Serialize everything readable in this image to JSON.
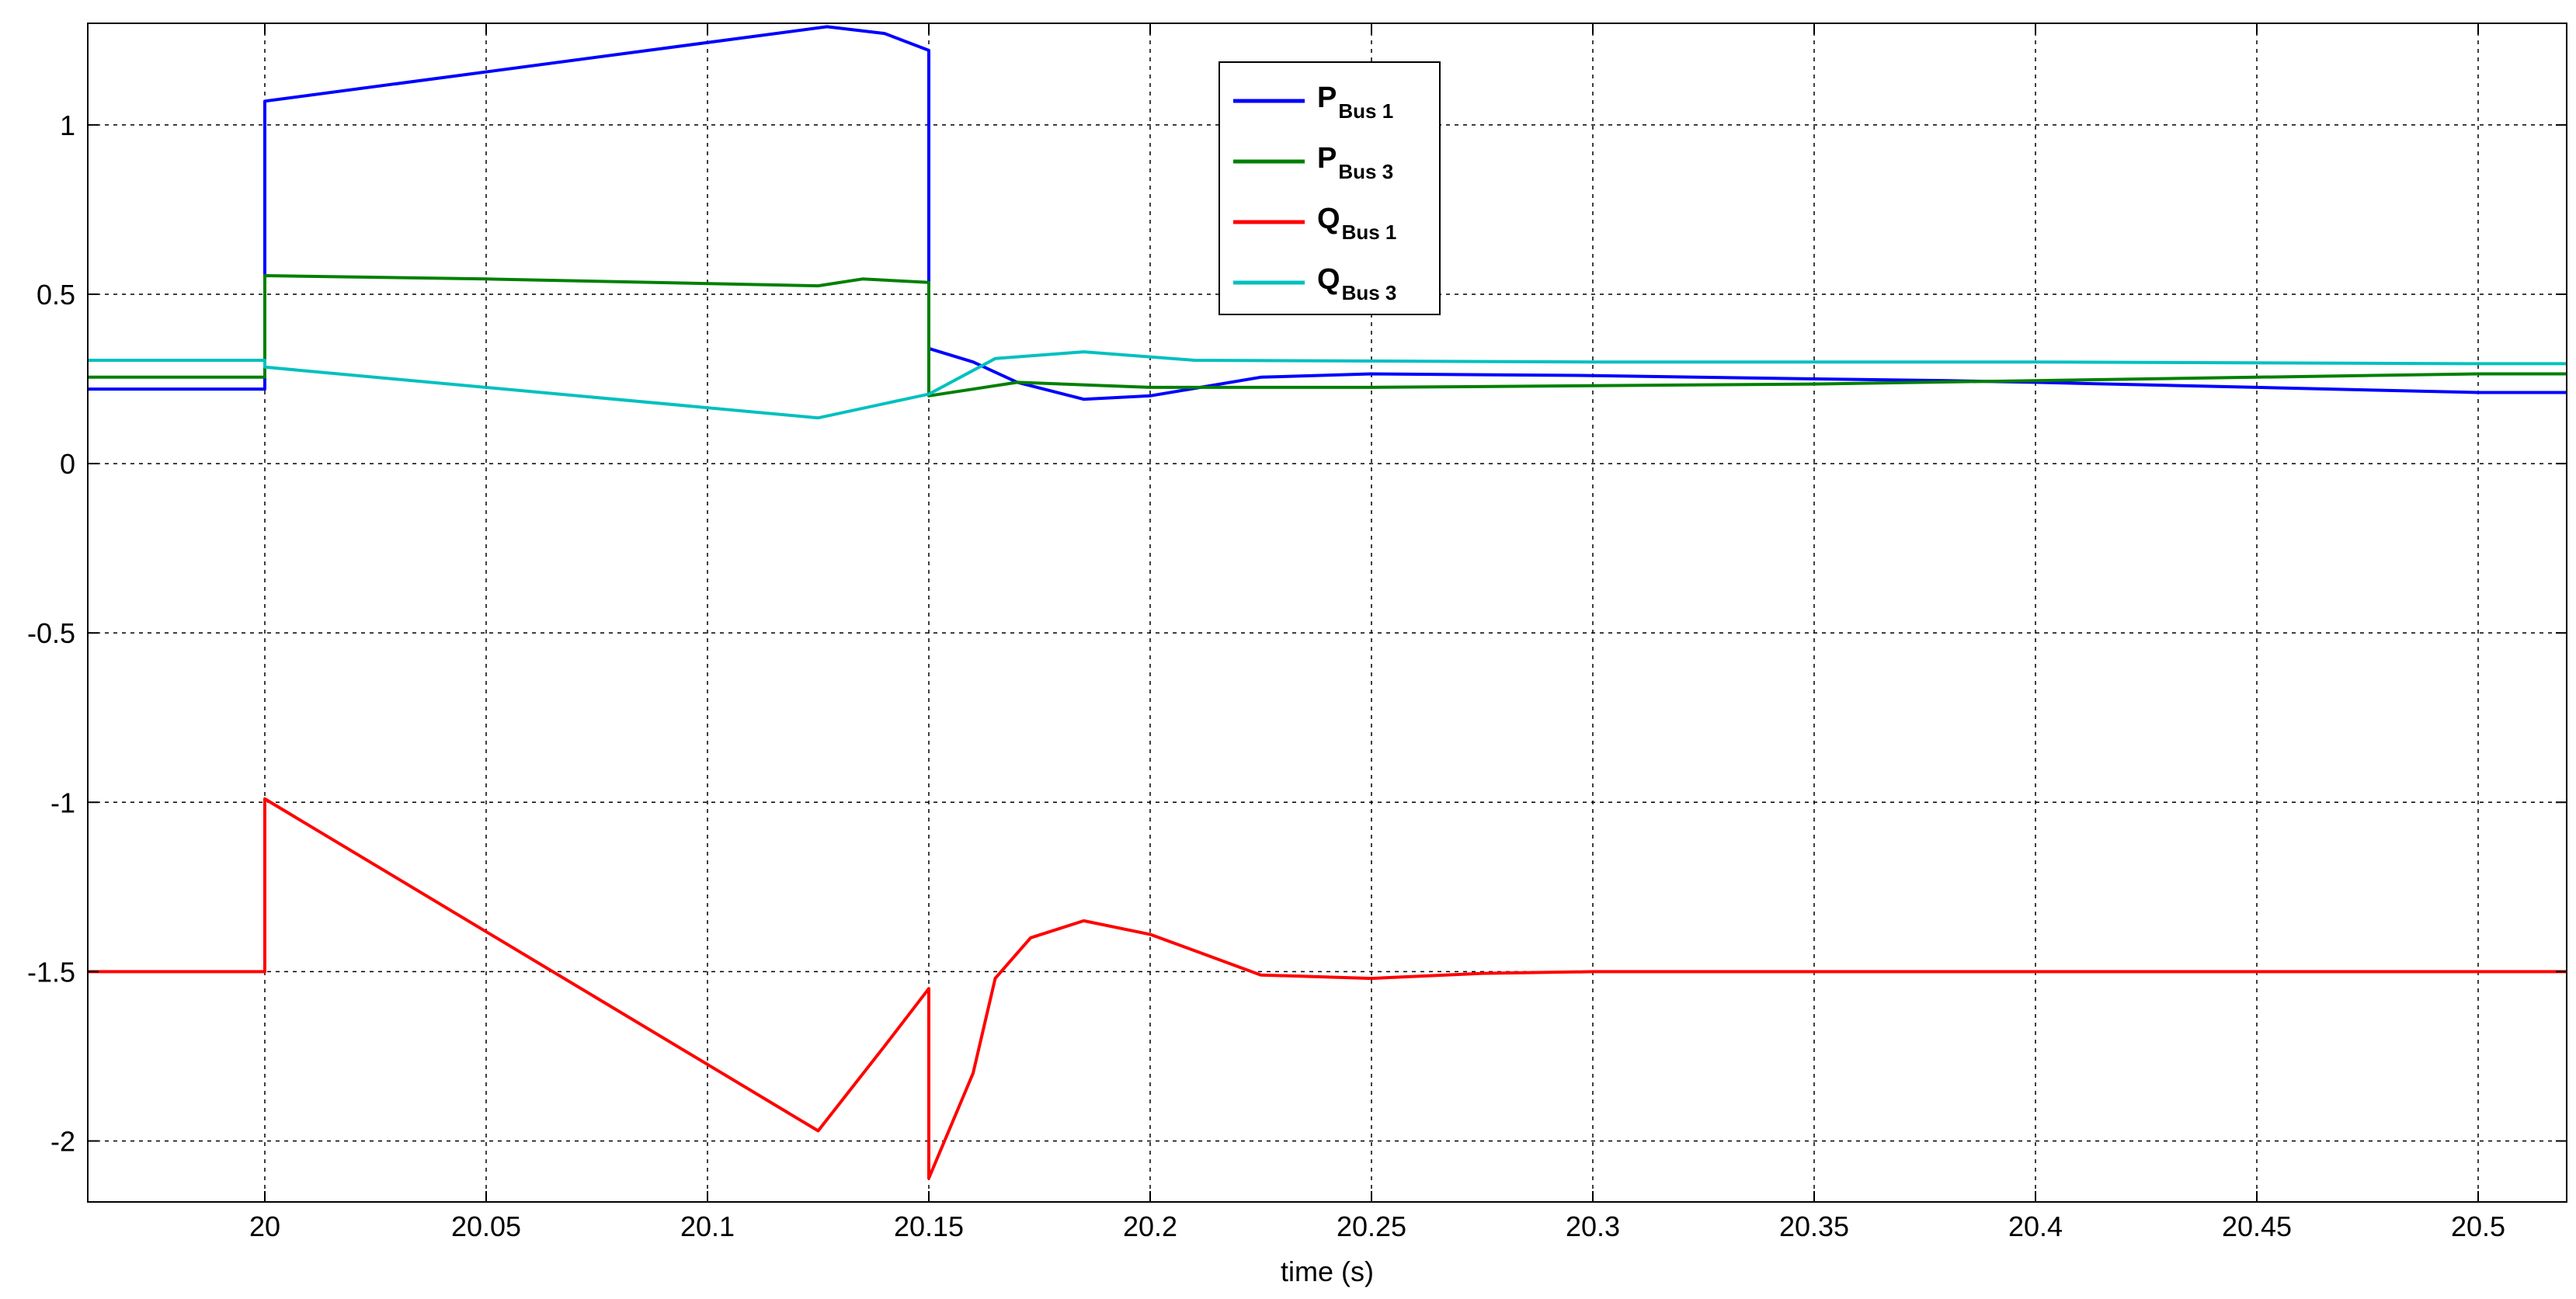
{
  "chart_data": {
    "type": "line",
    "title": "",
    "xlabel": "time (s)",
    "ylabel": "",
    "xlim": [
      19.96,
      20.52
    ],
    "ylim": [
      -2.18,
      1.3
    ],
    "xticks": [
      20,
      20.05,
      20.1,
      20.15,
      20.2,
      20.25,
      20.3,
      20.35,
      20.4,
      20.45,
      20.5
    ],
    "xtick_labels": [
      "20",
      "20.05",
      "20.1",
      "20.15",
      "20.2",
      "20.25",
      "20.3",
      "20.35",
      "20.4",
      "20.45",
      "20.5"
    ],
    "yticks": [
      -2,
      -1.5,
      -1,
      -0.5,
      0,
      0.5,
      1
    ],
    "ytick_labels": [
      "-2",
      "-1.5",
      "-1",
      "-0.5",
      "0",
      "0.5",
      "1"
    ],
    "grid": true,
    "legend_position": "top-center",
    "series": [
      {
        "name": "P_Bus 1",
        "label_main": "P",
        "label_sub": "Bus 1",
        "color": "#0000ff",
        "x": [
          19.96,
          20.0,
          20.0,
          20.127,
          20.14,
          20.15,
          20.15,
          20.16,
          20.17,
          20.185,
          20.2,
          20.225,
          20.25,
          20.3,
          20.35,
          20.38,
          20.4,
          20.45,
          20.5,
          20.52
        ],
        "y": [
          0.22,
          0.22,
          1.07,
          1.29,
          1.27,
          1.22,
          0.34,
          0.3,
          0.24,
          0.19,
          0.2,
          0.255,
          0.265,
          0.26,
          0.25,
          0.245,
          0.24,
          0.225,
          0.21,
          0.21
        ]
      },
      {
        "name": "P_Bus 3",
        "label_main": "P",
        "label_sub": "Bus 3",
        "color": "#008000",
        "x": [
          19.96,
          20.0,
          20.0,
          20.05,
          20.125,
          20.135,
          20.15,
          20.15,
          20.17,
          20.2,
          20.25,
          20.3,
          20.35,
          20.4,
          20.45,
          20.5,
          20.52
        ],
        "y": [
          0.255,
          0.255,
          0.555,
          0.545,
          0.525,
          0.545,
          0.535,
          0.2,
          0.24,
          0.225,
          0.225,
          0.23,
          0.235,
          0.245,
          0.255,
          0.265,
          0.265
        ]
      },
      {
        "name": "Q_Bus 1",
        "label_main": "Q",
        "label_sub": "Bus 1",
        "color": "#ff0000",
        "x": [
          19.96,
          20.0,
          20.0,
          20.125,
          20.14,
          20.15,
          20.15,
          20.16,
          20.165,
          20.173,
          20.185,
          20.2,
          20.225,
          20.25,
          20.275,
          20.3,
          20.52
        ],
        "y": [
          -1.5,
          -1.5,
          -0.99,
          -1.97,
          -1.72,
          -1.55,
          -2.11,
          -1.8,
          -1.52,
          -1.4,
          -1.35,
          -1.39,
          -1.51,
          -1.52,
          -1.505,
          -1.5,
          -1.5
        ]
      },
      {
        "name": "Q_Bus 3",
        "label_main": "Q",
        "label_sub": "Bus 3",
        "color": "#00c0c0",
        "x": [
          19.96,
          20.0,
          20.0,
          20.125,
          20.15,
          20.165,
          20.185,
          20.21,
          20.3,
          20.4,
          20.5,
          20.52
        ],
        "y": [
          0.305,
          0.305,
          0.285,
          0.135,
          0.205,
          0.31,
          0.33,
          0.305,
          0.3,
          0.3,
          0.295,
          0.295
        ]
      }
    ]
  }
}
